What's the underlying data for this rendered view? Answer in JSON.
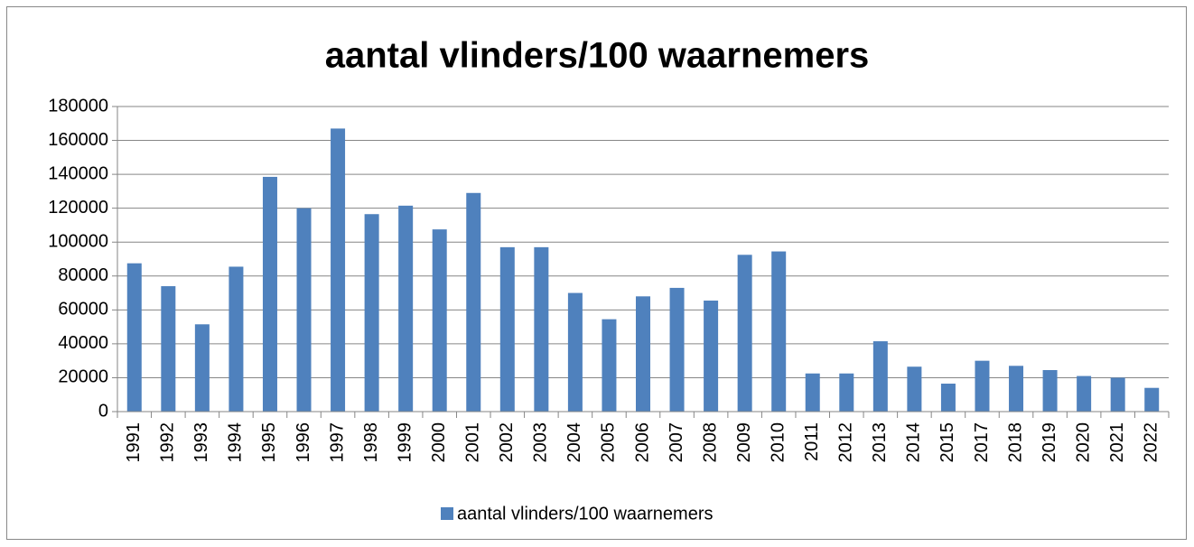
{
  "chart_data": {
    "type": "bar",
    "title": "aantal vlinders/100 waarnemers",
    "categories": [
      "1991",
      "1992",
      "1993",
      "1994",
      "1995",
      "1996",
      "1997",
      "1998",
      "1999",
      "2000",
      "2001",
      "2002",
      "2003",
      "2004",
      "2005",
      "2006",
      "2007",
      "2008",
      "2009",
      "2010",
      "2011",
      "2012",
      "2013",
      "2014",
      "2015",
      "2017",
      "2018",
      "2019",
      "2020",
      "2021",
      "2022"
    ],
    "series": [
      {
        "name": "aantal vlinders/100 waarnemers",
        "color": "#4f81bd",
        "values": [
          87500,
          74000,
          51500,
          85500,
          138500,
          120000,
          167000,
          116500,
          121500,
          107500,
          129000,
          97000,
          97000,
          70000,
          54500,
          68000,
          73000,
          65500,
          92500,
          94500,
          22500,
          22500,
          41500,
          26500,
          16500,
          30000,
          27000,
          24500,
          21000,
          20000,
          14000
        ]
      }
    ],
    "ylim": [
      0,
      180000
    ],
    "yticks": [
      0,
      20000,
      40000,
      60000,
      80000,
      100000,
      120000,
      140000,
      160000,
      180000
    ],
    "grid": true,
    "legend": "bottom"
  }
}
